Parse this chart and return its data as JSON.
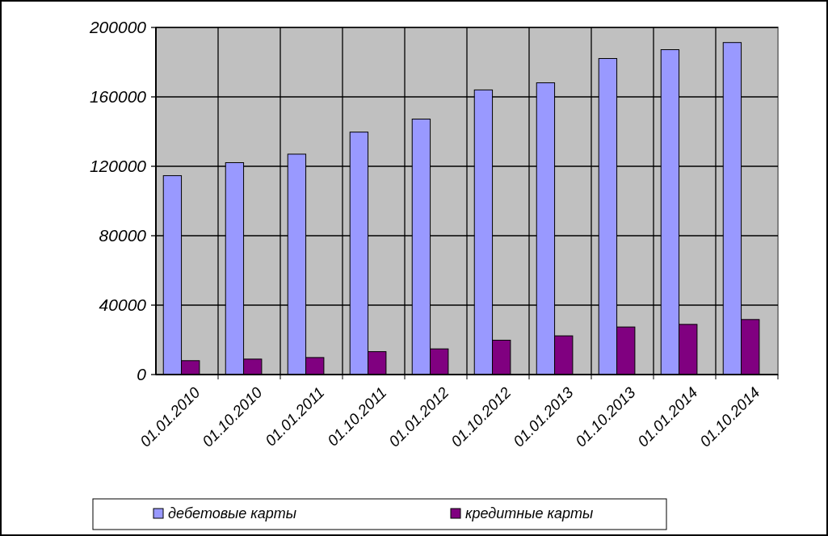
{
  "chart_data": {
    "type": "bar",
    "categories": [
      "01.01.2010",
      "01.10.2010",
      "01.01.2011",
      "01.10.2011",
      "01.01.2012",
      "01.10.2012",
      "01.01.2013",
      "01.10.2013",
      "01.01.2014",
      "01.10.2014"
    ],
    "series": [
      {
        "name": "дебетовые карты",
        "color": "#9999ff",
        "values": [
          114600,
          122100,
          127000,
          139700,
          147200,
          164000,
          168100,
          182100,
          187200,
          191300
        ]
      },
      {
        "name": "кредитные карты",
        "color": "#800080",
        "values": [
          8000,
          8900,
          9800,
          13200,
          14800,
          19800,
          22300,
          27400,
          28900,
          31700
        ]
      }
    ],
    "ylim": [
      0,
      200000
    ],
    "yticks": [
      0,
      40000,
      80000,
      120000,
      160000,
      200000
    ],
    "grid": true,
    "legend": "bottom"
  }
}
